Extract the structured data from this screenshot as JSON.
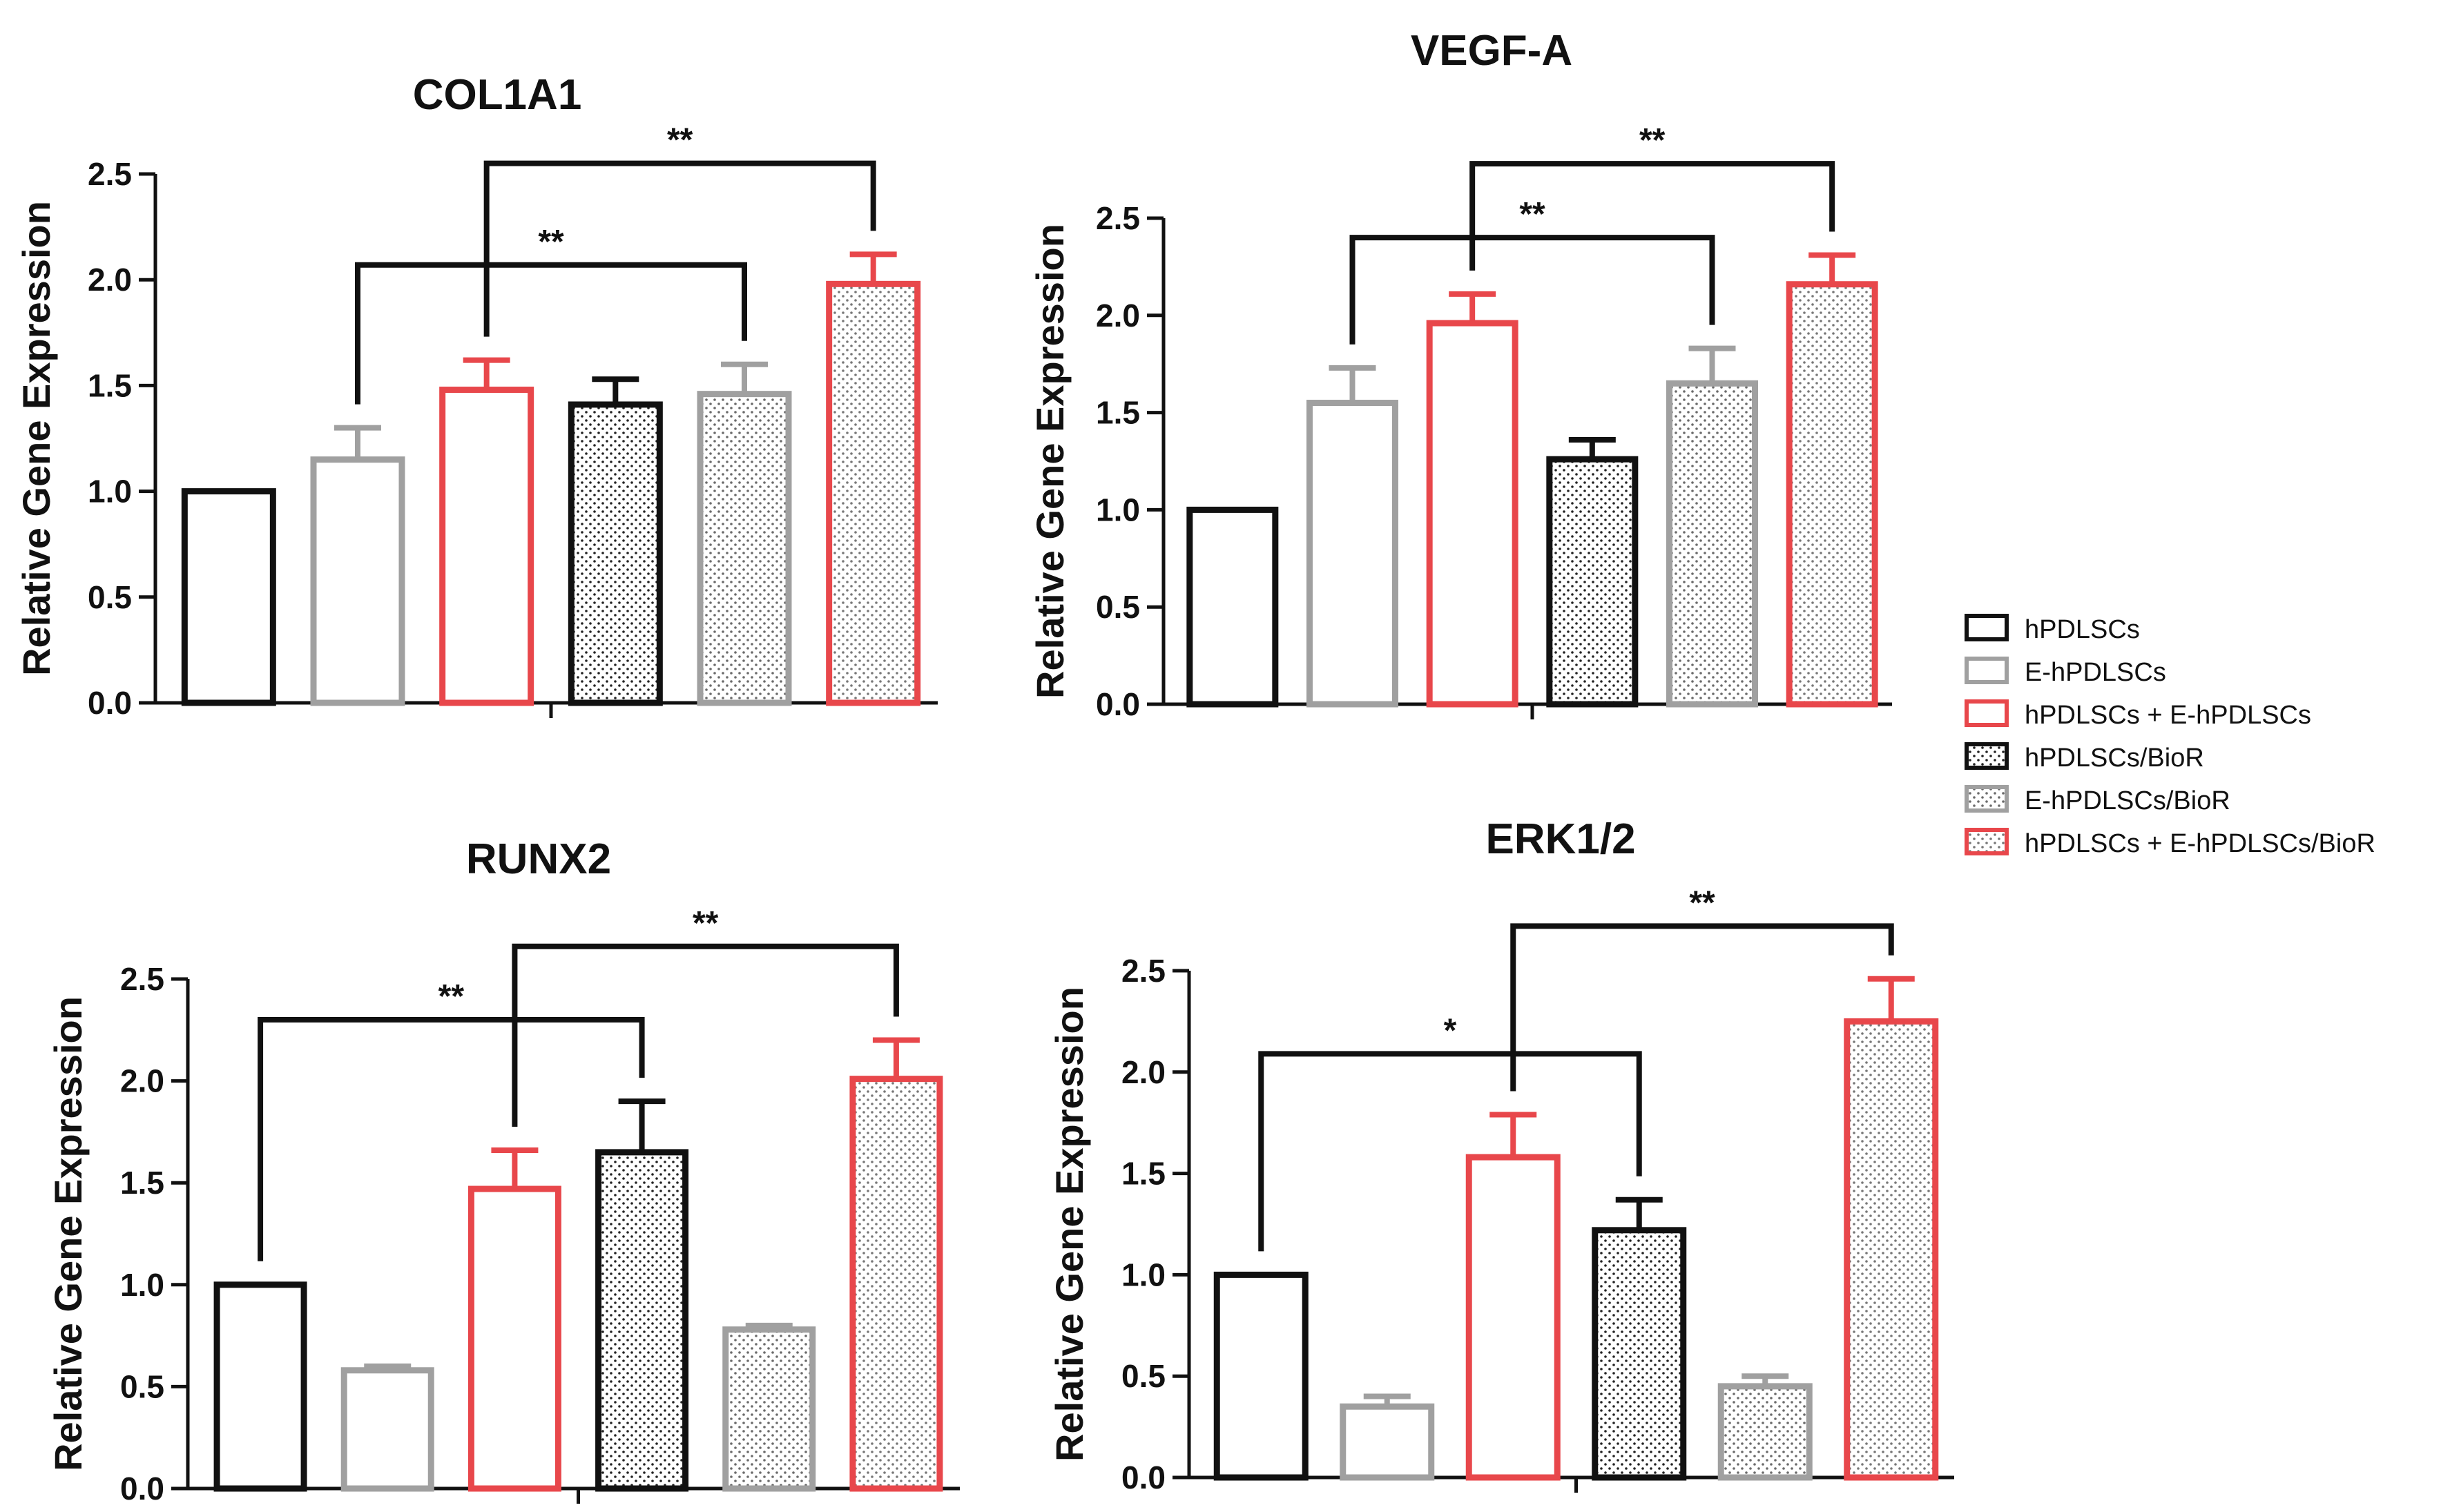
{
  "legend": {
    "items": [
      {
        "label": "hPDLSCs",
        "color": "#111111",
        "dotted": false
      },
      {
        "label": "E-hPDLSCs",
        "color": "#a0a0a0",
        "dotted": false
      },
      {
        "label": "hPDLSCs + E-hPDLSCs",
        "color": "#e8474b",
        "dotted": false
      },
      {
        "label": "hPDLSCs/BioR",
        "color": "#111111",
        "dotted": true
      },
      {
        "label": "E-hPDLSCs/BioR",
        "color": "#a0a0a0",
        "dotted": true
      },
      {
        "label": "hPDLSCs + E-hPDLSCs/BioR",
        "color": "#e8474b",
        "dotted": true
      }
    ]
  },
  "chart_data": [
    {
      "type": "bar",
      "title": "COL1A1",
      "ylabel": "Relative Gene Expression",
      "xlabel": "",
      "ylim": [
        0,
        2.5
      ],
      "yticks": [
        "0.0",
        "0.5",
        "1.0",
        "1.5",
        "2.0",
        "2.5"
      ],
      "categories": [
        "hPDLSCs",
        "E-hPDLSCs",
        "hPDLSCs + E-hPDLSCs",
        "hPDLSCs/BioR",
        "E-hPDLSCs/BioR",
        "hPDLSCs + E-hPDLSCs/BioR"
      ],
      "values": [
        1.0,
        1.15,
        1.48,
        1.41,
        1.46,
        1.98
      ],
      "errors": [
        0,
        0.15,
        0.14,
        0.12,
        0.14,
        0.14
      ],
      "significance": [
        {
          "from": 1,
          "to": 4,
          "label": "**",
          "level": 2.07
        },
        {
          "from": 2,
          "to": 5,
          "label": "**",
          "level": 2.55
        }
      ]
    },
    {
      "type": "bar",
      "title": "VEGF-A",
      "ylabel": "Relative Gene Expression",
      "xlabel": "",
      "ylim": [
        0,
        2.5
      ],
      "yticks": [
        "0.0",
        "0.5",
        "1.0",
        "1.5",
        "2.0",
        "2.5"
      ],
      "categories": [
        "hPDLSCs",
        "E-hPDLSCs",
        "hPDLSCs + E-hPDLSCs",
        "hPDLSCs/BioR",
        "E-hPDLSCs/BioR",
        "hPDLSCs + E-hPDLSCs/BioR"
      ],
      "values": [
        1.0,
        1.55,
        1.96,
        1.26,
        1.65,
        2.16
      ],
      "errors": [
        0,
        0.18,
        0.15,
        0.1,
        0.18,
        0.15
      ],
      "significance": [
        {
          "from": 1,
          "to": 4,
          "label": "**",
          "level": 2.4
        },
        {
          "from": 2,
          "to": 5,
          "label": "**",
          "level": 2.78
        }
      ]
    },
    {
      "type": "bar",
      "title": "RUNX2",
      "ylabel": "Relative Gene Expression",
      "xlabel": "",
      "ylim": [
        0,
        2.5
      ],
      "yticks": [
        "0.0",
        "0.5",
        "1.0",
        "1.5",
        "2.0",
        "2.5"
      ],
      "categories": [
        "hPDLSCs",
        "E-hPDLSCs",
        "hPDLSCs + E-hPDLSCs",
        "hPDLSCs/BioR",
        "E-hPDLSCs/BioR",
        "hPDLSCs + E-hPDLSCs/BioR"
      ],
      "values": [
        1.0,
        0.58,
        1.47,
        1.65,
        0.78,
        2.01
      ],
      "errors": [
        0,
        0.02,
        0.19,
        0.25,
        0.02,
        0.19
      ],
      "significance": [
        {
          "from": 0,
          "to": 3,
          "label": "**",
          "level": 2.3
        },
        {
          "from": 2,
          "to": 5,
          "label": "**",
          "level": 2.66
        }
      ]
    },
    {
      "type": "bar",
      "title": "ERK1/2",
      "ylabel": "Relative Gene Expression",
      "xlabel": "",
      "ylim": [
        0,
        2.5
      ],
      "yticks": [
        "0.0",
        "0.5",
        "1.0",
        "1.5",
        "2.0",
        "2.5"
      ],
      "categories": [
        "hPDLSCs",
        "E-hPDLSCs",
        "hPDLSCs + E-hPDLSCs",
        "hPDLSCs/BioR",
        "E-hPDLSCs/BioR",
        "hPDLSCs + E-hPDLSCs/BioR"
      ],
      "values": [
        1.0,
        0.35,
        1.58,
        1.22,
        0.45,
        2.25
      ],
      "errors": [
        0,
        0.05,
        0.21,
        0.15,
        0.05,
        0.21
      ],
      "significance": [
        {
          "from": 0,
          "to": 3,
          "label": "*",
          "level": 2.09
        },
        {
          "from": 2,
          "to": 5,
          "label": "**",
          "level": 2.72
        }
      ]
    }
  ]
}
